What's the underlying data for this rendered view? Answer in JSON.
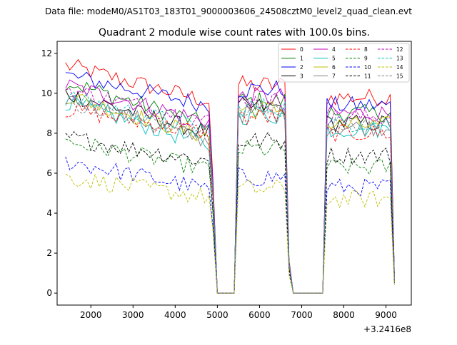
{
  "figure": {
    "suptitle": "Data file: modeM0/AS1T03_183T01_9000003606_24508cztM0_level2_quad_clean.evt"
  },
  "chart_data": {
    "type": "line",
    "title": "Quadrant 2 module wise count rates with 100.0s bins.",
    "xlabel": "",
    "ylabel": "",
    "x_offset_label": "+3.2416e8",
    "xlim": [
      1200,
      9600
    ],
    "ylim": [
      -0.6,
      12.6
    ],
    "xticks": [
      2000,
      3000,
      4000,
      5000,
      6000,
      7000,
      8000,
      9000
    ],
    "yticks": [
      0,
      2,
      4,
      6,
      8,
      10,
      12
    ],
    "grid": false,
    "legend_position": "top-right",
    "legend_columns": 4,
    "x_segments": [
      {
        "from": 1400,
        "to": 4800
      },
      {
        "from": 4900,
        "to": 5000
      },
      {
        "from": 5000,
        "to": 5400
      },
      {
        "from": 5500,
        "to": 6600
      },
      {
        "from": 6700,
        "to": 6800
      },
      {
        "from": 6800,
        "to": 7500
      },
      {
        "from": 7600,
        "to": 9100
      },
      {
        "from": 9200,
        "to": 9200
      }
    ],
    "series": [
      {
        "name": "0",
        "color": "#ff0000",
        "style": "solid",
        "levels": {
          "a_start": 11.4,
          "a_end": 9.6,
          "b": 10.4,
          "c": 9.8,
          "ramp_mid": 5.5,
          "end": 0.8
        }
      },
      {
        "name": "1",
        "color": "#008000",
        "style": "solid",
        "levels": {
          "a_start": 10.6,
          "a_end": 8.4,
          "b": 9.6,
          "c": 9.0,
          "ramp_mid": 5.0,
          "end": 0.7
        }
      },
      {
        "name": "2",
        "color": "#0000ff",
        "style": "solid",
        "levels": {
          "a_start": 10.9,
          "a_end": 9.4,
          "b": 10.2,
          "c": 9.4,
          "ramp_mid": 5.3,
          "end": 0.8
        }
      },
      {
        "name": "3",
        "color": "#000000",
        "style": "solid",
        "levels": {
          "a_start": 10.0,
          "a_end": 8.0,
          "b": 9.3,
          "c": 8.5,
          "ramp_mid": 4.8,
          "end": 0.6
        }
      },
      {
        "name": "4",
        "color": "#bf00bf",
        "style": "solid",
        "levels": {
          "a_start": 10.4,
          "a_end": 8.6,
          "b": 9.8,
          "c": 9.0,
          "ramp_mid": 5.1,
          "end": 0.7
        }
      },
      {
        "name": "5",
        "color": "#00bfbf",
        "style": "solid",
        "levels": {
          "a_start": 9.6,
          "a_end": 7.4,
          "b": 8.9,
          "c": 8.2,
          "ramp_mid": 4.6,
          "end": 0.6
        }
      },
      {
        "name": "6",
        "color": "#bfbf00",
        "style": "solid",
        "levels": {
          "a_start": 9.9,
          "a_end": 7.8,
          "b": 9.2,
          "c": 8.4,
          "ramp_mid": 4.7,
          "end": 0.6
        }
      },
      {
        "name": "7",
        "color": "#808080",
        "style": "solid",
        "levels": {
          "a_start": 9.8,
          "a_end": 7.6,
          "b": 9.0,
          "c": 8.3,
          "ramp_mid": 4.7,
          "end": 0.6
        }
      },
      {
        "name": "8",
        "color": "#ff0000",
        "style": "dashed",
        "levels": {
          "a_start": 9.2,
          "a_end": 8.0,
          "b": 8.8,
          "c": 8.0,
          "ramp_mid": 4.5,
          "end": 0.6
        }
      },
      {
        "name": "9",
        "color": "#008000",
        "style": "dashed",
        "levels": {
          "a_start": 7.6,
          "a_end": 6.2,
          "b": 7.2,
          "c": 6.3,
          "ramp_mid": 3.8,
          "end": 0.5
        }
      },
      {
        "name": "10",
        "color": "#0000ff",
        "style": "dashed",
        "levels": {
          "a_start": 6.6,
          "a_end": 5.2,
          "b": 5.8,
          "c": 5.3,
          "ramp_mid": 3.2,
          "end": 0.5
        }
      },
      {
        "name": "11",
        "color": "#000000",
        "style": "dashed",
        "levels": {
          "a_start": 7.8,
          "a_end": 6.6,
          "b": 7.6,
          "c": 6.9,
          "ramp_mid": 4.0,
          "end": 0.5
        }
      },
      {
        "name": "12",
        "color": "#bf00bf",
        "style": "dashed",
        "levels": {
          "a_start": 10.2,
          "a_end": 8.6,
          "b": 9.6,
          "c": 8.8,
          "ramp_mid": 5.0,
          "end": 0.7
        }
      },
      {
        "name": "13",
        "color": "#00bfbf",
        "style": "dashed",
        "levels": {
          "a_start": 9.8,
          "a_end": 8.2,
          "b": 9.3,
          "c": 8.5,
          "ramp_mid": 4.9,
          "end": 0.7
        }
      },
      {
        "name": "14",
        "color": "#bfbf00",
        "style": "dashed",
        "levels": {
          "a_start": 5.8,
          "a_end": 4.8,
          "b": 5.2,
          "c": 4.7,
          "ramp_mid": 3.0,
          "end": 0.4
        }
      },
      {
        "name": "15",
        "color": "#808080",
        "style": "dashed",
        "levels": {
          "a_start": 9.6,
          "a_end": 8.0,
          "b": 9.1,
          "c": 8.4,
          "ramp_mid": 4.8,
          "end": 0.6
        }
      }
    ]
  }
}
